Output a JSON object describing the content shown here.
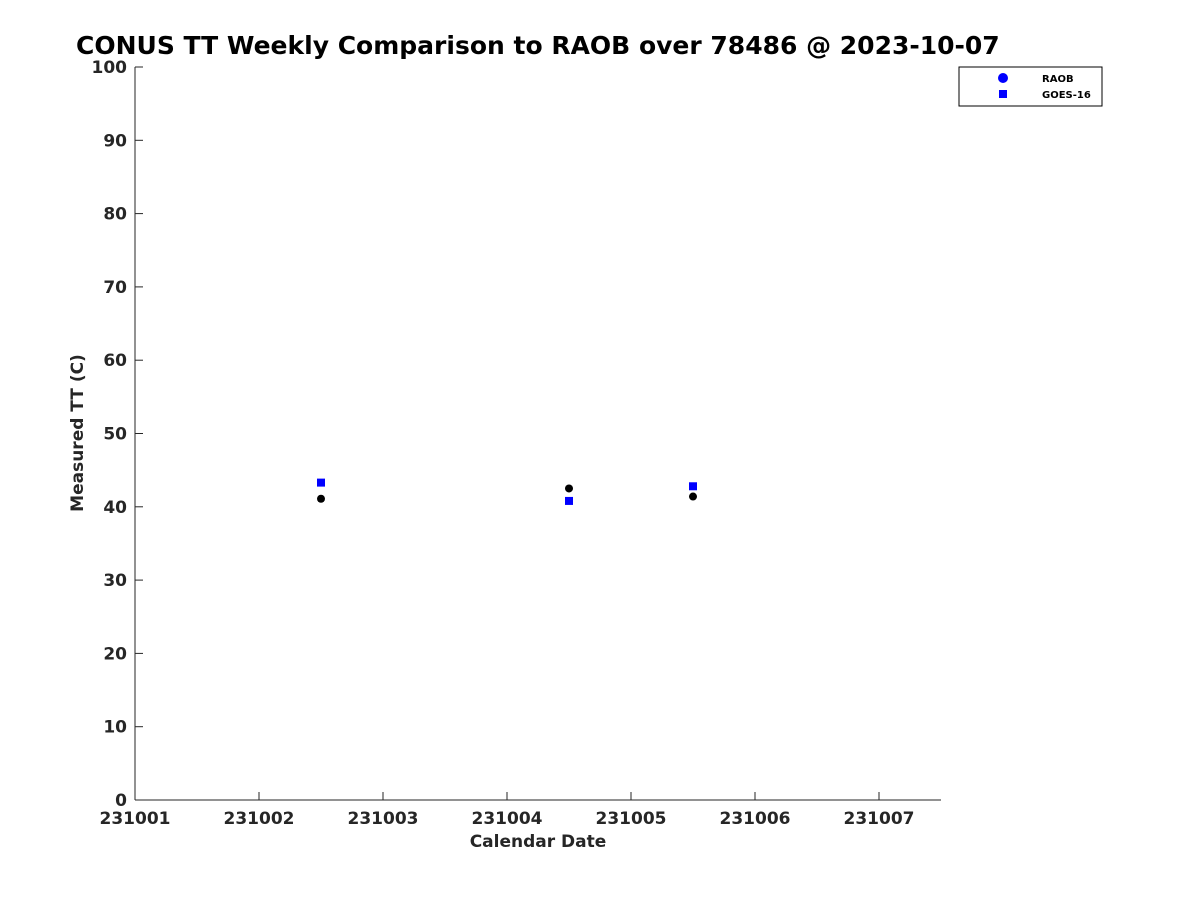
{
  "chart_data": {
    "type": "scatter",
    "title": "CONUS TT Weekly Comparison to RAOB over 78486 @ 2023-10-07",
    "xlabel": "Calendar Date",
    "ylabel": "Measured TT (C)",
    "xlim": [
      231001,
      231007.5
    ],
    "ylim": [
      0,
      100
    ],
    "x_ticks": [
      {
        "value": 231001,
        "label": "231001"
      },
      {
        "value": 231002,
        "label": "231002"
      },
      {
        "value": 231003,
        "label": "231003"
      },
      {
        "value": 231004,
        "label": "231004"
      },
      {
        "value": 231005,
        "label": "231005"
      },
      {
        "value": 231006,
        "label": "231006"
      },
      {
        "value": 231007,
        "label": "231007"
      }
    ],
    "y_ticks": [
      0,
      10,
      20,
      30,
      40,
      50,
      60,
      70,
      80,
      90,
      100
    ],
    "grid": false,
    "legend_position": "top-right",
    "series": [
      {
        "name": "RAOB",
        "marker": "circle",
        "legend_color": "#0000ff",
        "color": "#000000",
        "points": [
          {
            "x": 231002.5,
            "y": 41.1
          },
          {
            "x": 231004.5,
            "y": 42.5
          },
          {
            "x": 231005.5,
            "y": 41.4
          }
        ]
      },
      {
        "name": "GOES-16",
        "marker": "square",
        "legend_color": "#0000ff",
        "color": "#0000ff",
        "points": [
          {
            "x": 231002.5,
            "y": 43.3
          },
          {
            "x": 231004.5,
            "y": 40.8
          },
          {
            "x": 231005.5,
            "y": 42.8
          }
        ]
      }
    ]
  }
}
